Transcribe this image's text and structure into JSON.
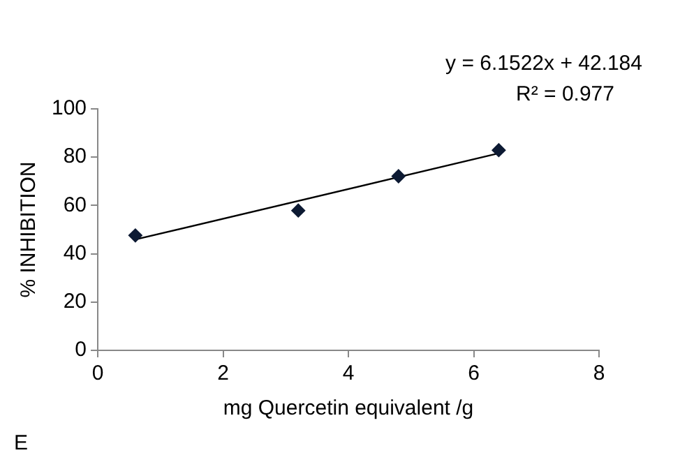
{
  "chart_data": {
    "type": "scatter",
    "xlabel": "mg Quercetin equivalent /g",
    "ylabel": "% INHIBITION",
    "x": [
      0.6,
      3.2,
      4.8,
      6.4
    ],
    "series": [
      {
        "color": "#0d1a33",
        "values": [
          47.6,
          57.9,
          72.1,
          82.9
        ],
        "marker": "diamond"
      },
      {
        "type": "line",
        "color": "#000000",
        "x": [
          0.6,
          6.4
        ],
        "values": [
          45.9,
          81.6
        ],
        "marker": "none"
      }
    ],
    "xlim": [
      0,
      8
    ],
    "xticks": [
      0,
      2,
      4,
      6,
      8
    ],
    "ylim": [
      0,
      100
    ],
    "yticks": [
      0,
      20,
      40,
      60,
      80,
      100
    ],
    "grid": false,
    "legend": false,
    "annotations": [
      "y = 6.1522x + 42.184",
      "R² = 0.977",
      "E"
    ]
  }
}
